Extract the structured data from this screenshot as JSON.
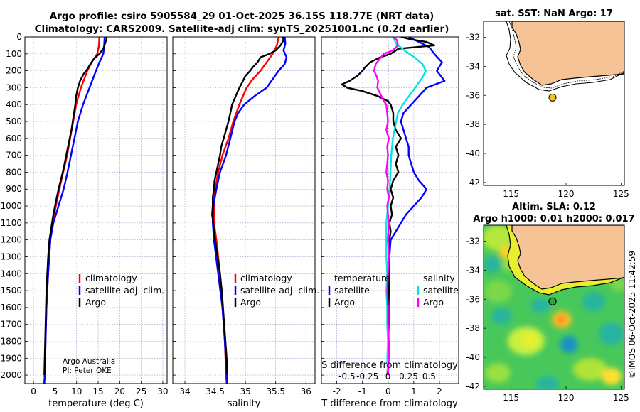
{
  "title": {
    "line1": "Argo profile: csiro 5905584_29 01-Oct-2025 36.15S 118.77E (NRT data)",
    "line2": "Climatology: CARS2009. Satellite-adj clim: synTS_20251001.nc (0.2d earlier)"
  },
  "colors": {
    "climatology": "#ff0000",
    "satellite_adj": "#0000ff",
    "argo": "#000000",
    "sat_temperature": "#0000ff",
    "sat_salinity": "#00e5e5",
    "argo_salinity": "#ff00ff",
    "land": "#f5c396"
  },
  "credit": {
    "line1": "Argo Australia",
    "line2": "PI: Peter OKE"
  },
  "timestamp": "©IMOS 06-Oct-2025 11:42:59",
  "chart_data": [
    {
      "id": "temperature",
      "type": "line",
      "xlabel": "temperature (deg C)",
      "ylabel": "",
      "xlim": [
        -2,
        31
      ],
      "ylim": [
        2050,
        0
      ],
      "xticks": [
        0,
        5,
        10,
        15,
        20,
        25,
        30
      ],
      "yticks": [
        0,
        100,
        200,
        300,
        400,
        500,
        600,
        700,
        800,
        900,
        1000,
        1100,
        1200,
        1300,
        1400,
        1500,
        1600,
        1700,
        1800,
        1900,
        2000
      ],
      "grid": true,
      "legend": {
        "position": "lower-right",
        "entries": [
          {
            "label": "climatology",
            "color": "#ff0000"
          },
          {
            "label": "satellite-adj. clim.",
            "color": "#0000ff"
          },
          {
            "label": "Argo",
            "color": "#000000"
          }
        ]
      },
      "series": [
        {
          "name": "climatology",
          "color": "#ff0000",
          "width": 2.4,
          "depth": [
            0,
            50,
            100,
            150,
            200,
            300,
            400,
            500,
            600,
            700,
            800,
            900,
            1000,
            1100,
            1200,
            1400,
            1600,
            1800,
            2000,
            2050
          ],
          "values": [
            15.3,
            15.2,
            14.8,
            13.5,
            12.5,
            11.0,
            9.9,
            9.2,
            8.5,
            7.8,
            6.9,
            6.0,
            5.2,
            4.4,
            3.9,
            3.4,
            3.0,
            2.8,
            2.6,
            2.5
          ]
        },
        {
          "name": "satellite-adj. clim.",
          "color": "#0000ff",
          "width": 2.4,
          "depth": [
            0,
            50,
            100,
            150,
            200,
            300,
            400,
            500,
            600,
            700,
            800,
            900,
            1000,
            1100,
            1200,
            1400,
            1600,
            1800,
            2000,
            2050
          ],
          "values": [
            16.5,
            16.4,
            16.2,
            15.3,
            14.5,
            13.0,
            11.5,
            10.3,
            9.5,
            8.7,
            7.9,
            7.0,
            5.8,
            4.6,
            3.9,
            3.4,
            3.0,
            2.8,
            2.6,
            2.5
          ]
        },
        {
          "name": "Argo",
          "color": "#000000",
          "width": 2.4,
          "depth": [
            0,
            15,
            40,
            70,
            100,
            130,
            160,
            190,
            220,
            260,
            300,
            350,
            400,
            450,
            500,
            550,
            600,
            650,
            700,
            750,
            800,
            850,
            900,
            950,
            1000,
            1050,
            1100,
            1150,
            1200,
            1300,
            1400,
            1500,
            1600,
            1700,
            1800,
            1900,
            2000
          ],
          "values": [
            17.0,
            16.9,
            16.6,
            16.2,
            15.3,
            14.0,
            13.2,
            12.5,
            11.6,
            10.8,
            10.3,
            9.9,
            9.7,
            9.4,
            9.1,
            8.8,
            8.4,
            8.0,
            7.6,
            7.2,
            6.8,
            6.3,
            5.8,
            5.4,
            5.0,
            4.6,
            4.3,
            4.0,
            3.7,
            3.4,
            3.2,
            3.0,
            2.9,
            2.8,
            2.7,
            2.6,
            2.5
          ]
        }
      ]
    },
    {
      "id": "salinity",
      "type": "line",
      "xlabel": "salinity",
      "ylabel": "",
      "xlim": [
        33.8,
        36.15
      ],
      "ylim": [
        2050,
        0
      ],
      "xticks": [
        34,
        34.5,
        35,
        35.5,
        36
      ],
      "grid": true,
      "legend": {
        "position": "lower-right",
        "entries": [
          {
            "label": "climatology",
            "color": "#ff0000"
          },
          {
            "label": "satellite-adj. clim.",
            "color": "#0000ff"
          },
          {
            "label": "Argo",
            "color": "#000000"
          }
        ]
      },
      "series": [
        {
          "name": "climatology",
          "color": "#ff0000",
          "width": 2.4,
          "depth": [
            0,
            50,
            100,
            150,
            200,
            250,
            300,
            400,
            500,
            600,
            700,
            800,
            900,
            1000,
            1100,
            1200,
            1400,
            1600,
            1800,
            2000,
            2050
          ],
          "values": [
            35.55,
            35.52,
            35.45,
            35.35,
            35.25,
            35.12,
            35.02,
            34.9,
            34.8,
            34.72,
            34.62,
            34.55,
            34.5,
            34.48,
            34.48,
            34.52,
            34.58,
            34.62,
            34.66,
            34.68,
            34.69
          ]
        },
        {
          "name": "satellite-adj. clim.",
          "color": "#0000ff",
          "width": 2.4,
          "depth": [
            0,
            40,
            80,
            120,
            160,
            200,
            250,
            300,
            350,
            400,
            450,
            500,
            600,
            700,
            800,
            900,
            1000,
            1100,
            1200,
            1400,
            1600,
            1800,
            2000,
            2050
          ],
          "values": [
            35.65,
            35.66,
            35.63,
            35.68,
            35.65,
            35.55,
            35.45,
            35.35,
            35.15,
            34.98,
            34.88,
            34.82,
            34.75,
            34.68,
            34.58,
            34.52,
            34.47,
            34.46,
            34.48,
            34.55,
            34.62,
            34.66,
            34.69,
            34.7
          ]
        },
        {
          "name": "Argo",
          "color": "#000000",
          "width": 2.4,
          "depth": [
            0,
            20,
            50,
            80,
            100,
            120,
            150,
            180,
            200,
            230,
            260,
            300,
            350,
            400,
            450,
            500,
            550,
            600,
            650,
            700,
            750,
            800,
            850,
            900,
            950,
            1000,
            1050,
            1100,
            1200,
            1300,
            1400,
            1500,
            1600,
            1700,
            1800,
            1900,
            2000
          ],
          "values": [
            35.62,
            35.63,
            35.58,
            35.5,
            35.4,
            35.25,
            35.2,
            35.12,
            35.08,
            35.0,
            34.96,
            34.9,
            34.84,
            34.78,
            34.75,
            34.72,
            34.68,
            34.64,
            34.6,
            34.58,
            34.55,
            34.52,
            34.49,
            34.48,
            34.46,
            34.46,
            34.45,
            34.47,
            34.5,
            34.54,
            34.58,
            34.61,
            34.63,
            34.65,
            34.67,
            34.69,
            34.7
          ]
        }
      ]
    },
    {
      "id": "difference",
      "type": "line",
      "xlabel": "T difference from climatology",
      "x2label": "S difference from climatology",
      "xlim": [
        -2.6,
        2.75
      ],
      "x2lim": [
        -0.81,
        0.86
      ],
      "ylim": [
        2050,
        0
      ],
      "xticks": [
        -2,
        -1,
        0,
        1,
        2
      ],
      "xticklabels": [
        "-2",
        "-1",
        "0",
        "1",
        "2"
      ],
      "x2ticks": [
        -0.5,
        -0.25,
        0,
        0.25,
        0.5
      ],
      "x2ticklabels": [
        "-0.5",
        "-0.25",
        "0",
        "0.25",
        "0.5"
      ],
      "grid": true,
      "legend": {
        "position": "lower-center",
        "temperature_header": "temperature",
        "salinity_header": "salinity",
        "temperature_entries": [
          {
            "label": "satellite",
            "color": "#0000ff"
          },
          {
            "label": "Argo",
            "color": "#000000"
          }
        ],
        "salinity_entries": [
          {
            "label": "satellite",
            "color": "#00e5e5"
          },
          {
            "label": "Argo",
            "color": "#ff00ff"
          }
        ]
      },
      "series": [
        {
          "name": "temperature satellite",
          "axis": "T",
          "color": "#0000ff",
          "width": 2.4,
          "depth": [
            0,
            30,
            60,
            100,
            150,
            200,
            260,
            300,
            350,
            400,
            450,
            500,
            550,
            600,
            650,
            700,
            750,
            800,
            850,
            900,
            950,
            1000,
            1050,
            1100,
            1150,
            1200,
            1300,
            1400,
            1500,
            1600,
            1700,
            1800,
            1900,
            2000
          ],
          "values": [
            0.8,
            1.2,
            1.6,
            1.8,
            2.1,
            1.9,
            2.2,
            1.5,
            1.2,
            0.9,
            0.6,
            0.5,
            0.6,
            0.7,
            0.8,
            0.8,
            0.9,
            1.0,
            1.2,
            1.5,
            1.3,
            1.0,
            0.7,
            0.5,
            0.3,
            0.1,
            0.05,
            0.03,
            0.02,
            0.01,
            0.01,
            0.0,
            0.0,
            0.0
          ]
        },
        {
          "name": "temperature Argo",
          "axis": "T",
          "color": "#000000",
          "width": 2.4,
          "depth": [
            0,
            15,
            30,
            50,
            70,
            100,
            120,
            150,
            180,
            200,
            230,
            260,
            280,
            300,
            320,
            350,
            380,
            400,
            450,
            500,
            550,
            600,
            650,
            700,
            750,
            800,
            850,
            900,
            950,
            1000,
            1050,
            1100,
            1150,
            1200,
            1300,
            1400,
            1500,
            1600,
            1700,
            1800,
            1900,
            2000
          ],
          "values": [
            0.5,
            0.9,
            1.5,
            1.8,
            0.4,
            0.1,
            -0.3,
            -0.7,
            -0.9,
            -1.0,
            -1.2,
            -1.5,
            -1.8,
            -1.6,
            -1.0,
            -0.4,
            0.0,
            0.1,
            0.2,
            0.2,
            0.3,
            0.5,
            0.3,
            0.4,
            0.3,
            0.4,
            0.2,
            0.1,
            0.2,
            0.1,
            0.15,
            0.05,
            0.1,
            0.05,
            0.04,
            0.03,
            0.03,
            0.02,
            0.02,
            0.01,
            0.0,
            -0.03
          ]
        },
        {
          "name": "salinity satellite",
          "axis": "S",
          "color": "#00e5e5",
          "width": 2.4,
          "depth": [
            0,
            40,
            80,
            120,
            160,
            200,
            240,
            280,
            320,
            360,
            400,
            450,
            500,
            600,
            700,
            800,
            900,
            1000,
            1100,
            1200,
            1300,
            1400,
            1500,
            1600,
            1700,
            1800,
            1900,
            2000
          ],
          "values": [
            0.06,
            0.1,
            0.2,
            0.32,
            0.42,
            0.46,
            0.42,
            0.36,
            0.3,
            0.24,
            0.18,
            0.12,
            0.1,
            0.06,
            0.04,
            0.03,
            0.02,
            0.0,
            -0.02,
            -0.02,
            -0.02,
            -0.01,
            -0.02,
            -0.01,
            -0.01,
            0.0,
            -0.01,
            0.0
          ]
        },
        {
          "name": "salinity Argo",
          "axis": "S",
          "color": "#ff00ff",
          "width": 2.4,
          "depth": [
            0,
            20,
            50,
            80,
            100,
            130,
            160,
            200,
            230,
            260,
            300,
            340,
            380,
            400,
            450,
            500,
            550,
            600,
            650,
            700,
            750,
            800,
            850,
            900,
            950,
            1000,
            1050,
            1100,
            1200,
            1300,
            1400,
            1500,
            1600,
            1700,
            1800,
            1900,
            2000
          ],
          "values": [
            0.07,
            0.11,
            0.12,
            0.06,
            -0.05,
            -0.1,
            -0.15,
            -0.17,
            -0.14,
            -0.12,
            -0.13,
            -0.09,
            -0.05,
            -0.02,
            -0.01,
            0.0,
            -0.02,
            0.01,
            -0.01,
            0.0,
            -0.01,
            -0.02,
            0.0,
            -0.01,
            0.01,
            -0.01,
            0.0,
            0.01,
            0.0,
            0.01,
            0.0,
            -0.01,
            0.0,
            0.0,
            0.01,
            0.01,
            0.0
          ]
        }
      ]
    },
    {
      "id": "sst-map",
      "type": "map",
      "title": "sat. SST: NaN Argo: 17",
      "xlim": [
        112.5,
        125.3
      ],
      "ylim": [
        -42.2,
        -30.9
      ],
      "xticks": [
        115,
        120,
        125
      ],
      "yticks": [
        -32,
        -34,
        -36,
        -38,
        -40,
        -42
      ],
      "argo_position": {
        "lon": 118.77,
        "lat": -36.15
      },
      "land_color": "#f5c396"
    },
    {
      "id": "sla-map",
      "type": "heatmap",
      "title_line1": "Altim. SLA: 0.12",
      "title_line2": "Argo h1000: 0.01 h2000: 0.017",
      "xlim": [
        112.5,
        125.3
      ],
      "ylim": [
        -42.2,
        -30.9
      ],
      "xticks": [
        115,
        120,
        125
      ],
      "yticks": [
        -32,
        -34,
        -36,
        -38,
        -40,
        -42
      ],
      "argo_position": {
        "lon": 118.77,
        "lat": -36.15
      },
      "land_color": "#f5c396"
    }
  ]
}
